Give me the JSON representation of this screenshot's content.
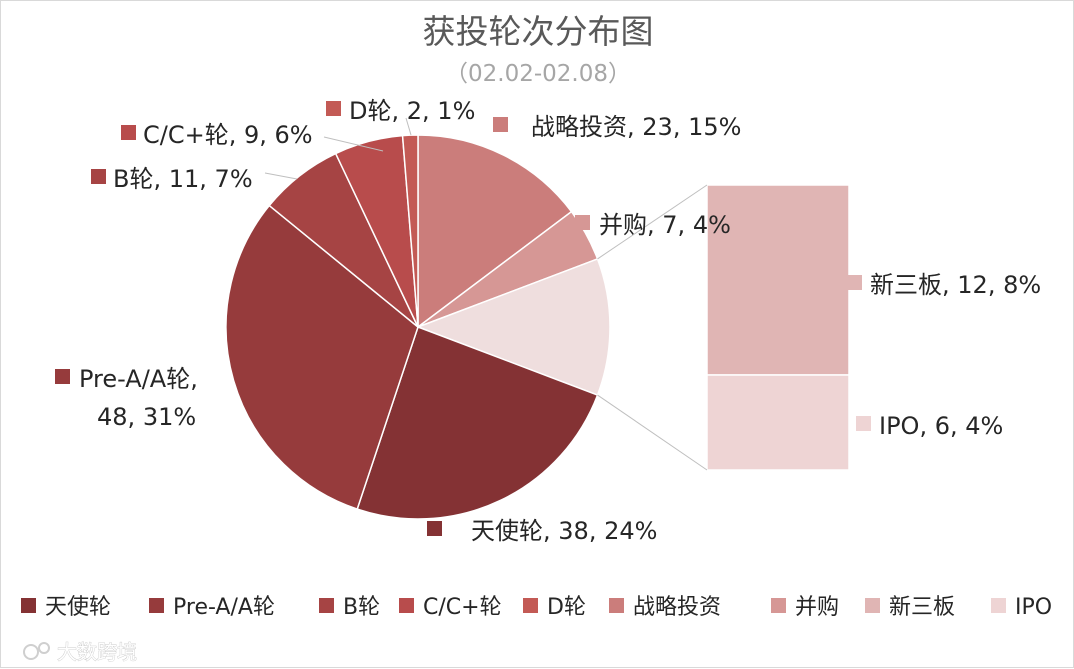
{
  "chart_data": {
    "type": "pie",
    "variant": "pie-of-pie",
    "title": "获投轮次分布图",
    "subtitle": "（02.02-02.08）",
    "slices": [
      {
        "name": "天使轮",
        "value": 38,
        "percent": "24%",
        "color": "#843234"
      },
      {
        "name": "Pre-A/A轮",
        "value": 48,
        "percent": "31%",
        "color": "#963b3c"
      },
      {
        "name": "B轮",
        "value": 11,
        "percent": "7%",
        "color": "#a64444"
      },
      {
        "name": "C/C+轮",
        "value": 9,
        "percent": "6%",
        "color": "#b84c4c"
      },
      {
        "name": "D轮",
        "value": 2,
        "percent": "1%",
        "color": "#c35a55"
      },
      {
        "name": "战略投资",
        "value": 23,
        "percent": "15%",
        "color": "#cb7d7b"
      },
      {
        "name": "并购",
        "value": 7,
        "percent": "4%",
        "color": "#d69795"
      },
      {
        "name": "新三板",
        "value": 12,
        "percent": "8%",
        "color": "#e0b5b4"
      },
      {
        "name": "IPO",
        "value": 6,
        "percent": "4%",
        "color": "#eed4d4"
      }
    ],
    "secondary_slices": [
      "新三板",
      "IPO"
    ],
    "legend_position": "bottom"
  },
  "watermark": "大数跨境"
}
